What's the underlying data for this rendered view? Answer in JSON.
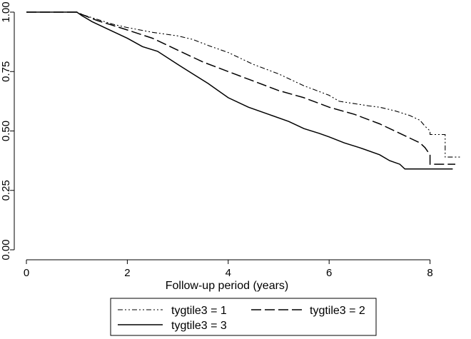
{
  "chart_data": {
    "type": "line",
    "title": "",
    "xlabel": "Follow-up period (years)",
    "ylabel": "",
    "xlim": [
      0,
      8.6
    ],
    "ylim": [
      0,
      1
    ],
    "x_ticks": [
      {
        "value": 0,
        "label": "0"
      },
      {
        "value": 2,
        "label": "2"
      },
      {
        "value": 4,
        "label": "4"
      },
      {
        "value": 6,
        "label": "6"
      },
      {
        "value": 8,
        "label": "8"
      }
    ],
    "y_ticks": [
      {
        "value": 0,
        "label": "0.00"
      },
      {
        "value": 0.25,
        "label": "0.25"
      },
      {
        "value": 0.5,
        "label": "0.50"
      },
      {
        "value": 0.75,
        "label": "0.75"
      },
      {
        "value": 1,
        "label": "1.00"
      }
    ],
    "grid": false,
    "legend_position": "bottom",
    "series": [
      {
        "name": "tygtile3 = 1",
        "dash": "dash-dot-dot",
        "color": "#000000",
        "points": [
          [
            0,
            1
          ],
          [
            1,
            1
          ],
          [
            1.1,
            0.99
          ],
          [
            1.4,
            0.97
          ],
          [
            1.7,
            0.95
          ],
          [
            2,
            0.935
          ],
          [
            2.5,
            0.915
          ],
          [
            3,
            0.9
          ],
          [
            3.3,
            0.885
          ],
          [
            3.6,
            0.86
          ],
          [
            4,
            0.83
          ],
          [
            4.5,
            0.78
          ],
          [
            5,
            0.74
          ],
          [
            5.5,
            0.69
          ],
          [
            6,
            0.65
          ],
          [
            6.2,
            0.625
          ],
          [
            6.5,
            0.615
          ],
          [
            6.8,
            0.605
          ],
          [
            7,
            0.6
          ],
          [
            7.3,
            0.585
          ],
          [
            7.6,
            0.565
          ],
          [
            7.8,
            0.545
          ],
          [
            7.9,
            0.52
          ],
          [
            8.0,
            0.5
          ],
          [
            8.0,
            0.485
          ],
          [
            8.3,
            0.485
          ],
          [
            8.3,
            0.39
          ],
          [
            8.6,
            0.39
          ]
        ]
      },
      {
        "name": "tygtile3 = 2",
        "dash": "long-dash",
        "color": "#000000",
        "points": [
          [
            0,
            1
          ],
          [
            1,
            1
          ],
          [
            1.1,
            0.99
          ],
          [
            1.4,
            0.965
          ],
          [
            1.7,
            0.945
          ],
          [
            2,
            0.925
          ],
          [
            2.5,
            0.89
          ],
          [
            3,
            0.84
          ],
          [
            3.5,
            0.79
          ],
          [
            4,
            0.75
          ],
          [
            4.5,
            0.71
          ],
          [
            5,
            0.67
          ],
          [
            5.5,
            0.64
          ],
          [
            6,
            0.6
          ],
          [
            6.5,
            0.57
          ],
          [
            7,
            0.53
          ],
          [
            7.3,
            0.5
          ],
          [
            7.6,
            0.47
          ],
          [
            7.8,
            0.45
          ],
          [
            7.9,
            0.43
          ],
          [
            8.0,
            0.4
          ],
          [
            8.0,
            0.36
          ],
          [
            8.5,
            0.36
          ]
        ]
      },
      {
        "name": "tygtile3 = 3",
        "dash": "solid",
        "color": "#000000",
        "points": [
          [
            0,
            1
          ],
          [
            1,
            1
          ],
          [
            1.1,
            0.985
          ],
          [
            1.3,
            0.96
          ],
          [
            1.6,
            0.93
          ],
          [
            2,
            0.89
          ],
          [
            2.3,
            0.855
          ],
          [
            2.6,
            0.835
          ],
          [
            3,
            0.78
          ],
          [
            3.3,
            0.74
          ],
          [
            3.6,
            0.7
          ],
          [
            4,
            0.64
          ],
          [
            4.4,
            0.6
          ],
          [
            4.8,
            0.57
          ],
          [
            5.2,
            0.54
          ],
          [
            5.5,
            0.51
          ],
          [
            5.8,
            0.49
          ],
          [
            6,
            0.475
          ],
          [
            6.3,
            0.45
          ],
          [
            6.6,
            0.43
          ],
          [
            7,
            0.4
          ],
          [
            7.2,
            0.375
          ],
          [
            7.4,
            0.36
          ],
          [
            7.5,
            0.34
          ],
          [
            8.45,
            0.34
          ]
        ]
      }
    ]
  }
}
